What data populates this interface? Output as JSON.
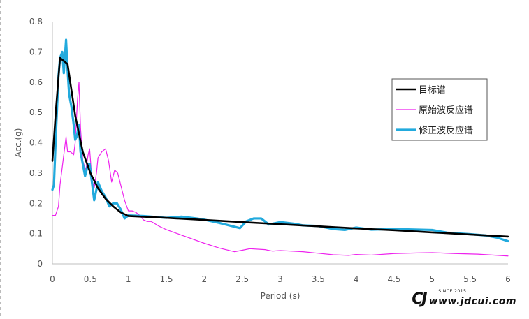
{
  "chart_data": {
    "type": "line",
    "xlabel": "Period (s)",
    "ylabel": "Acc.(g)",
    "xlim": [
      0,
      6
    ],
    "ylim": [
      0,
      0.8
    ],
    "x_ticks": [
      "0",
      "0.5",
      "1",
      "1.5",
      "2",
      "2.5",
      "3",
      "3.5",
      "4",
      "4.5",
      "5",
      "5.5",
      "6"
    ],
    "y_ticks": [
      "0",
      "0.1",
      "0.2",
      "0.3",
      "0.4",
      "0.5",
      "0.6",
      "0.7",
      "0.8"
    ],
    "grid": false,
    "legend_position": "right",
    "series": [
      {
        "name": "目标谱",
        "color": "#000000",
        "width": 2.6,
        "points": [
          [
            0,
            0.34
          ],
          [
            0.05,
            0.52
          ],
          [
            0.1,
            0.68
          ],
          [
            0.2,
            0.66
          ],
          [
            0.3,
            0.49
          ],
          [
            0.4,
            0.37
          ],
          [
            0.5,
            0.3
          ],
          [
            0.6,
            0.25
          ],
          [
            0.7,
            0.215
          ],
          [
            0.8,
            0.19
          ],
          [
            0.9,
            0.17
          ],
          [
            1.0,
            0.158
          ],
          [
            1.5,
            0.152
          ],
          [
            2.0,
            0.145
          ],
          [
            2.5,
            0.138
          ],
          [
            3.0,
            0.131
          ],
          [
            3.5,
            0.124
          ],
          [
            4.0,
            0.117
          ],
          [
            4.5,
            0.111
          ],
          [
            5.0,
            0.104
          ],
          [
            5.5,
            0.097
          ],
          [
            6.0,
            0.09
          ]
        ]
      },
      {
        "name": "原始波反应谱",
        "color": "#ee22ee",
        "width": 1.2,
        "points": [
          [
            0,
            0.16
          ],
          [
            0.04,
            0.16
          ],
          [
            0.08,
            0.19
          ],
          [
            0.1,
            0.26
          ],
          [
            0.14,
            0.34
          ],
          [
            0.18,
            0.42
          ],
          [
            0.2,
            0.37
          ],
          [
            0.24,
            0.37
          ],
          [
            0.28,
            0.36
          ],
          [
            0.3,
            0.4
          ],
          [
            0.33,
            0.54
          ],
          [
            0.35,
            0.6
          ],
          [
            0.37,
            0.45
          ],
          [
            0.4,
            0.34
          ],
          [
            0.44,
            0.31
          ],
          [
            0.47,
            0.36
          ],
          [
            0.49,
            0.38
          ],
          [
            0.52,
            0.28
          ],
          [
            0.55,
            0.25
          ],
          [
            0.58,
            0.3
          ],
          [
            0.6,
            0.35
          ],
          [
            0.65,
            0.37
          ],
          [
            0.7,
            0.38
          ],
          [
            0.74,
            0.34
          ],
          [
            0.78,
            0.27
          ],
          [
            0.82,
            0.31
          ],
          [
            0.86,
            0.3
          ],
          [
            0.9,
            0.26
          ],
          [
            0.95,
            0.21
          ],
          [
            1.0,
            0.175
          ],
          [
            1.05,
            0.175
          ],
          [
            1.1,
            0.17
          ],
          [
            1.15,
            0.16
          ],
          [
            1.2,
            0.145
          ],
          [
            1.25,
            0.14
          ],
          [
            1.3,
            0.14
          ],
          [
            1.4,
            0.125
          ],
          [
            1.5,
            0.113
          ],
          [
            1.7,
            0.095
          ],
          [
            2.0,
            0.068
          ],
          [
            2.2,
            0.052
          ],
          [
            2.4,
            0.04
          ],
          [
            2.5,
            0.045
          ],
          [
            2.6,
            0.05
          ],
          [
            2.8,
            0.047
          ],
          [
            2.9,
            0.042
          ],
          [
            3.0,
            0.044
          ],
          [
            3.3,
            0.04
          ],
          [
            3.5,
            0.035
          ],
          [
            3.7,
            0.03
          ],
          [
            3.9,
            0.028
          ],
          [
            4.0,
            0.031
          ],
          [
            4.2,
            0.029
          ],
          [
            4.5,
            0.034
          ],
          [
            4.8,
            0.036
          ],
          [
            5.0,
            0.037
          ],
          [
            5.3,
            0.034
          ],
          [
            5.6,
            0.032
          ],
          [
            6.0,
            0.026
          ]
        ]
      },
      {
        "name": "修正波反应谱",
        "color": "#22aadd",
        "width": 3.2,
        "points": [
          [
            0,
            0.245
          ],
          [
            0.02,
            0.26
          ],
          [
            0.05,
            0.45
          ],
          [
            0.08,
            0.62
          ],
          [
            0.1,
            0.68
          ],
          [
            0.13,
            0.7
          ],
          [
            0.15,
            0.63
          ],
          [
            0.18,
            0.74
          ],
          [
            0.2,
            0.64
          ],
          [
            0.22,
            0.56
          ],
          [
            0.25,
            0.52
          ],
          [
            0.28,
            0.46
          ],
          [
            0.3,
            0.41
          ],
          [
            0.32,
            0.42
          ],
          [
            0.35,
            0.46
          ],
          [
            0.37,
            0.37
          ],
          [
            0.4,
            0.33
          ],
          [
            0.43,
            0.29
          ],
          [
            0.47,
            0.33
          ],
          [
            0.49,
            0.33
          ],
          [
            0.52,
            0.27
          ],
          [
            0.55,
            0.21
          ],
          [
            0.6,
            0.27
          ],
          [
            0.65,
            0.24
          ],
          [
            0.7,
            0.22
          ],
          [
            0.75,
            0.19
          ],
          [
            0.8,
            0.2
          ],
          [
            0.85,
            0.2
          ],
          [
            0.9,
            0.18
          ],
          [
            0.95,
            0.15
          ],
          [
            1.0,
            0.16
          ],
          [
            1.2,
            0.158
          ],
          [
            1.5,
            0.152
          ],
          [
            1.7,
            0.156
          ],
          [
            1.9,
            0.15
          ],
          [
            2.0,
            0.146
          ],
          [
            2.2,
            0.135
          ],
          [
            2.47,
            0.118
          ],
          [
            2.55,
            0.14
          ],
          [
            2.65,
            0.15
          ],
          [
            2.75,
            0.15
          ],
          [
            2.85,
            0.13
          ],
          [
            3.0,
            0.138
          ],
          [
            3.2,
            0.132
          ],
          [
            3.3,
            0.127
          ],
          [
            3.5,
            0.125
          ],
          [
            3.7,
            0.115
          ],
          [
            3.85,
            0.112
          ],
          [
            4.0,
            0.12
          ],
          [
            4.2,
            0.113
          ],
          [
            4.5,
            0.115
          ],
          [
            5.0,
            0.112
          ],
          [
            5.2,
            0.103
          ],
          [
            5.5,
            0.098
          ],
          [
            5.7,
            0.094
          ],
          [
            5.85,
            0.087
          ],
          [
            6.0,
            0.075
          ]
        ]
      }
    ]
  },
  "watermark": {
    "logo": "CJ",
    "since": "SINCE 2015",
    "url": "www.jdcui.com"
  }
}
